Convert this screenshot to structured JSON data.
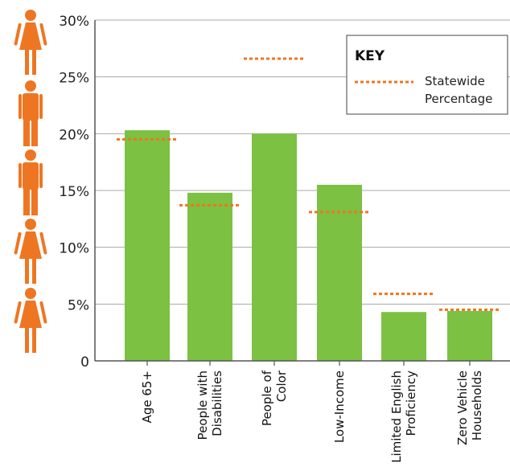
{
  "chart_data": {
    "type": "bar",
    "title": "",
    "xlabel": "",
    "ylabel": "",
    "ylim": [
      0,
      30
    ],
    "y_ticks": [
      "0",
      "5%",
      "10%",
      "15%",
      "20%",
      "25%",
      "30%"
    ],
    "y_tick_values": [
      0,
      5,
      10,
      15,
      20,
      25,
      30
    ],
    "grid": true,
    "categories": [
      [
        "Age 65+"
      ],
      [
        "People with",
        "Disabilities"
      ],
      [
        "People of",
        "Color"
      ],
      [
        "Low-Income"
      ],
      [
        "Limited English",
        "Proficiency"
      ],
      [
        "Zero Vehicle",
        "Households"
      ]
    ],
    "series": [
      {
        "values": [
          20.3,
          14.8,
          20.0,
          15.5,
          4.3,
          4.4
        ]
      }
    ],
    "reference_series": {
      "name": "Statewide Percentage",
      "values": [
        19.5,
        13.7,
        26.6,
        13.1,
        5.9,
        4.5
      ]
    },
    "legend": {
      "title": "KEY",
      "entry_lines": [
        "Statewide",
        "Percentage"
      ],
      "placement": "top-right"
    }
  },
  "colors": {
    "bar": "#7cc142",
    "reference": "#ee7623",
    "icon": "#ee7623",
    "grid": "#a8a8a8",
    "axis": "#555555"
  },
  "icons": [
    "female-figure-icon",
    "male-figure-icon",
    "male-figure-icon",
    "female-figure-icon",
    "female-figure-icon"
  ]
}
